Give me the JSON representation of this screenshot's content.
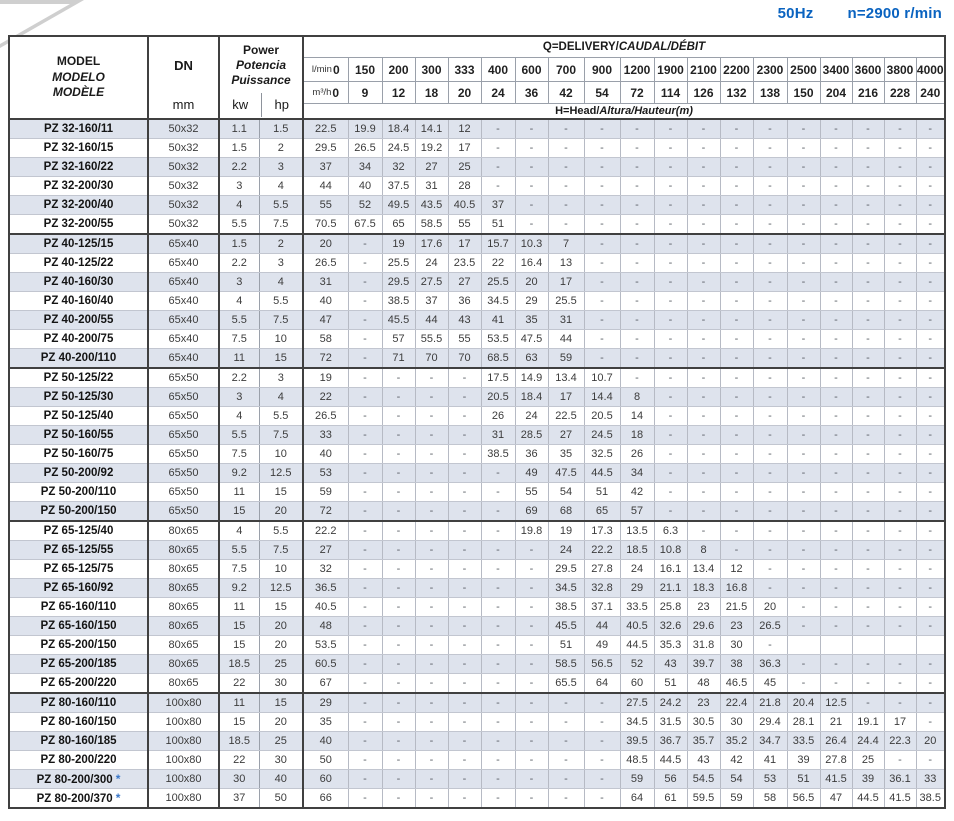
{
  "title": {
    "frequency": "50Hz",
    "speed": "n=2900 r/min"
  },
  "table": {
    "header": {
      "model_labels": [
        "MODEL",
        "MODELO",
        "MODÈLE"
      ],
      "dn_label": "DN",
      "dn_unit": "mm",
      "power_labels": [
        "Power",
        "Potencia",
        "Puissance"
      ],
      "power_unit_kw": "kw",
      "power_unit_hp": "hp",
      "q_title_main": "Q=DELIVERY/",
      "q_title_intl": "CAUDAL/DÉBIT",
      "h_title_main": "H=Head/",
      "h_title_intl": "Altura/Hauteur(m)",
      "flow_lmin_label": "l/min",
      "flow_m3h_label": "m³/h",
      "flow_lmin": [
        "0",
        "150",
        "200",
        "300",
        "333",
        "400",
        "600",
        "700",
        "900",
        "1200",
        "1900",
        "2100",
        "2200",
        "2300",
        "2500",
        "3400",
        "3600",
        "3800",
        "4000"
      ],
      "flow_m3h": [
        "0",
        "9",
        "12",
        "18",
        "20",
        "24",
        "36",
        "42",
        "54",
        "72",
        "114",
        "126",
        "132",
        "138",
        "150",
        "204",
        "216",
        "228",
        "240"
      ]
    },
    "rows": [
      {
        "model": "PZ 32-160/11",
        "star": "",
        "group_start": false,
        "dn": "50x32",
        "kw": "1.1",
        "hp": "1.5",
        "head_m": [
          "22.5",
          "19.9",
          "18.4",
          "14.1",
          "12",
          "-",
          "-",
          "-",
          "-",
          "-",
          "-",
          "-",
          "-",
          "-",
          "-",
          "-",
          "-",
          "-",
          "-"
        ]
      },
      {
        "model": "PZ 32-160/15",
        "star": "",
        "group_start": false,
        "dn": "50x32",
        "kw": "1.5",
        "hp": "2",
        "head_m": [
          "29.5",
          "26.5",
          "24.5",
          "19.2",
          "17",
          "-",
          "-",
          "-",
          "-",
          "-",
          "-",
          "-",
          "-",
          "-",
          "-",
          "-",
          "-",
          "-",
          "-"
        ]
      },
      {
        "model": "PZ 32-160/22",
        "star": "",
        "group_start": false,
        "dn": "50x32",
        "kw": "2.2",
        "hp": "3",
        "head_m": [
          "37",
          "34",
          "32",
          "27",
          "25",
          "-",
          "-",
          "-",
          "-",
          "-",
          "-",
          "-",
          "-",
          "-",
          "-",
          "-",
          "-",
          "-",
          "-"
        ]
      },
      {
        "model": "PZ 32-200/30",
        "star": "",
        "group_start": false,
        "dn": "50x32",
        "kw": "3",
        "hp": "4",
        "head_m": [
          "44",
          "40",
          "37.5",
          "31",
          "28",
          "-",
          "-",
          "-",
          "-",
          "-",
          "-",
          "-",
          "-",
          "-",
          "-",
          "-",
          "-",
          "-",
          "-"
        ]
      },
      {
        "model": "PZ 32-200/40",
        "star": "",
        "group_start": false,
        "dn": "50x32",
        "kw": "4",
        "hp": "5.5",
        "head_m": [
          "55",
          "52",
          "49.5",
          "43.5",
          "40.5",
          "37",
          "-",
          "-",
          "-",
          "-",
          "-",
          "-",
          "-",
          "-",
          "-",
          "-",
          "-",
          "-",
          "-"
        ]
      },
      {
        "model": "PZ 32-200/55",
        "star": "",
        "group_start": false,
        "dn": "50x32",
        "kw": "5.5",
        "hp": "7.5",
        "head_m": [
          "70.5",
          "67.5",
          "65",
          "58.5",
          "55",
          "51",
          "-",
          "-",
          "-",
          "-",
          "-",
          "-",
          "-",
          "-",
          "-",
          "-",
          "-",
          "-",
          "-"
        ]
      },
      {
        "model": "PZ 40-125/15",
        "star": "",
        "group_start": true,
        "dn": "65x40",
        "kw": "1.5",
        "hp": "2",
        "head_m": [
          "20",
          "-",
          "19",
          "17.6",
          "17",
          "15.7",
          "10.3",
          "7",
          "-",
          "-",
          "-",
          "-",
          "-",
          "-",
          "-",
          "-",
          "-",
          "-",
          "-"
        ]
      },
      {
        "model": "PZ 40-125/22",
        "star": "",
        "group_start": false,
        "dn": "65x40",
        "kw": "2.2",
        "hp": "3",
        "head_m": [
          "26.5",
          "-",
          "25.5",
          "24",
          "23.5",
          "22",
          "16.4",
          "13",
          "-",
          "-",
          "-",
          "-",
          "-",
          "-",
          "-",
          "-",
          "-",
          "-",
          "-"
        ]
      },
      {
        "model": "PZ 40-160/30",
        "star": "",
        "group_start": false,
        "dn": "65x40",
        "kw": "3",
        "hp": "4",
        "head_m": [
          "31",
          "-",
          "29.5",
          "27.5",
          "27",
          "25.5",
          "20",
          "17",
          "-",
          "-",
          "-",
          "-",
          "-",
          "-",
          "-",
          "-",
          "-",
          "-",
          "-"
        ]
      },
      {
        "model": "PZ 40-160/40",
        "star": "",
        "group_start": false,
        "dn": "65x40",
        "kw": "4",
        "hp": "5.5",
        "head_m": [
          "40",
          "-",
          "38.5",
          "37",
          "36",
          "34.5",
          "29",
          "25.5",
          "-",
          "-",
          "-",
          "-",
          "-",
          "-",
          "-",
          "-",
          "-",
          "-",
          "-"
        ]
      },
      {
        "model": "PZ 40-200/55",
        "star": "",
        "group_start": false,
        "dn": "65x40",
        "kw": "5.5",
        "hp": "7.5",
        "head_m": [
          "47",
          "-",
          "45.5",
          "44",
          "43",
          "41",
          "35",
          "31",
          "-",
          "-",
          "-",
          "-",
          "-",
          "-",
          "-",
          "-",
          "-",
          "-",
          "-"
        ]
      },
      {
        "model": "PZ 40-200/75",
        "star": "",
        "group_start": false,
        "dn": "65x40",
        "kw": "7.5",
        "hp": "10",
        "head_m": [
          "58",
          "-",
          "57",
          "55.5",
          "55",
          "53.5",
          "47.5",
          "44",
          "-",
          "-",
          "-",
          "-",
          "-",
          "-",
          "-",
          "-",
          "-",
          "-",
          "-"
        ]
      },
      {
        "model": "PZ 40-200/110",
        "star": "",
        "group_start": false,
        "dn": "65x40",
        "kw": "11",
        "hp": "15",
        "head_m": [
          "72",
          "-",
          "71",
          "70",
          "70",
          "68.5",
          "63",
          "59",
          "-",
          "-",
          "-",
          "-",
          "-",
          "-",
          "-",
          "-",
          "-",
          "-",
          "-"
        ]
      },
      {
        "model": "PZ 50-125/22",
        "star": "",
        "group_start": true,
        "dn": "65x50",
        "kw": "2.2",
        "hp": "3",
        "head_m": [
          "19",
          "-",
          "-",
          "-",
          "-",
          "17.5",
          "14.9",
          "13.4",
          "10.7",
          "-",
          "-",
          "-",
          "-",
          "-",
          "-",
          "-",
          "-",
          "-",
          "-"
        ]
      },
      {
        "model": "PZ 50-125/30",
        "star": "",
        "group_start": false,
        "dn": "65x50",
        "kw": "3",
        "hp": "4",
        "head_m": [
          "22",
          "-",
          "-",
          "-",
          "-",
          "20.5",
          "18.4",
          "17",
          "14.4",
          "8",
          "-",
          "-",
          "-",
          "-",
          "-",
          "-",
          "-",
          "-",
          "-"
        ]
      },
      {
        "model": "PZ 50-125/40",
        "star": "",
        "group_start": false,
        "dn": "65x50",
        "kw": "4",
        "hp": "5.5",
        "head_m": [
          "26.5",
          "-",
          "-",
          "-",
          "-",
          "26",
          "24",
          "22.5",
          "20.5",
          "14",
          "-",
          "-",
          "-",
          "-",
          "-",
          "-",
          "-",
          "-",
          "-"
        ]
      },
      {
        "model": "PZ 50-160/55",
        "star": "",
        "group_start": false,
        "dn": "65x50",
        "kw": "5.5",
        "hp": "7.5",
        "head_m": [
          "33",
          "-",
          "-",
          "-",
          "-",
          "31",
          "28.5",
          "27",
          "24.5",
          "18",
          "-",
          "-",
          "-",
          "-",
          "-",
          "-",
          "-",
          "-",
          "-"
        ]
      },
      {
        "model": "PZ 50-160/75",
        "star": "",
        "group_start": false,
        "dn": "65x50",
        "kw": "7.5",
        "hp": "10",
        "head_m": [
          "40",
          "-",
          "-",
          "-",
          "-",
          "38.5",
          "36",
          "35",
          "32.5",
          "26",
          "-",
          "-",
          "-",
          "-",
          "-",
          "-",
          "-",
          "-",
          "-"
        ]
      },
      {
        "model": "PZ 50-200/92",
        "star": "",
        "group_start": false,
        "dn": "65x50",
        "kw": "9.2",
        "hp": "12.5",
        "head_m": [
          "53",
          "-",
          "-",
          "-",
          "-",
          "-",
          "49",
          "47.5",
          "44.5",
          "34",
          "-",
          "-",
          "-",
          "-",
          "-",
          "-",
          "-",
          "-",
          "-"
        ]
      },
      {
        "model": "PZ 50-200/110",
        "star": "",
        "group_start": false,
        "dn": "65x50",
        "kw": "11",
        "hp": "15",
        "head_m": [
          "59",
          "-",
          "-",
          "-",
          "-",
          "-",
          "55",
          "54",
          "51",
          "42",
          "-",
          "-",
          "-",
          "-",
          "-",
          "-",
          "-",
          "-",
          "-"
        ]
      },
      {
        "model": "PZ 50-200/150",
        "star": "",
        "group_start": false,
        "dn": "65x50",
        "kw": "15",
        "hp": "20",
        "head_m": [
          "72",
          "-",
          "-",
          "-",
          "-",
          "-",
          "69",
          "68",
          "65",
          "57",
          "-",
          "-",
          "-",
          "-",
          "-",
          "-",
          "-",
          "-",
          "-"
        ]
      },
      {
        "model": "PZ 65-125/40",
        "star": "",
        "group_start": true,
        "dn": "80x65",
        "kw": "4",
        "hp": "5.5",
        "head_m": [
          "22.2",
          "-",
          "-",
          "-",
          "-",
          "-",
          "19.8",
          "19",
          "17.3",
          "13.5",
          "6.3",
          "-",
          "-",
          "-",
          "-",
          "-",
          "-",
          "-",
          "-"
        ]
      },
      {
        "model": "PZ 65-125/55",
        "star": "",
        "group_start": false,
        "dn": "80x65",
        "kw": "5.5",
        "hp": "7.5",
        "head_m": [
          "27",
          "-",
          "-",
          "-",
          "-",
          "-",
          "-",
          "24",
          "22.2",
          "18.5",
          "10.8",
          "8",
          "-",
          "-",
          "-",
          "-",
          "-",
          "-",
          "-"
        ]
      },
      {
        "model": "PZ 65-125/75",
        "star": "",
        "group_start": false,
        "dn": "80x65",
        "kw": "7.5",
        "hp": "10",
        "head_m": [
          "32",
          "-",
          "-",
          "-",
          "-",
          "-",
          "-",
          "29.5",
          "27.8",
          "24",
          "16.1",
          "13.4",
          "12",
          "-",
          "-",
          "-",
          "-",
          "-",
          "-"
        ]
      },
      {
        "model": "PZ 65-160/92",
        "star": "",
        "group_start": false,
        "dn": "80x65",
        "kw": "9.2",
        "hp": "12.5",
        "head_m": [
          "36.5",
          "-",
          "-",
          "-",
          "-",
          "-",
          "-",
          "34.5",
          "32.8",
          "29",
          "21.1",
          "18.3",
          "16.8",
          "-",
          "-",
          "-",
          "-",
          "-",
          "-"
        ]
      },
      {
        "model": "PZ 65-160/110",
        "star": "",
        "group_start": false,
        "dn": "80x65",
        "kw": "11",
        "hp": "15",
        "head_m": [
          "40.5",
          "-",
          "-",
          "-",
          "-",
          "-",
          "-",
          "38.5",
          "37.1",
          "33.5",
          "25.8",
          "23",
          "21.5",
          "20",
          "-",
          "-",
          "-",
          "-",
          "-"
        ]
      },
      {
        "model": "PZ 65-160/150",
        "star": "",
        "group_start": false,
        "dn": "80x65",
        "kw": "15",
        "hp": "20",
        "head_m": [
          "48",
          "-",
          "-",
          "-",
          "-",
          "-",
          "-",
          "45.5",
          "44",
          "40.5",
          "32.6",
          "29.6",
          "23",
          "26.5",
          "-",
          "-",
          "-",
          "-",
          "-"
        ]
      },
      {
        "model": "PZ 65-200/150",
        "star": "",
        "group_start": false,
        "dn": "80x65",
        "kw": "15",
        "hp": "20",
        "head_m": [
          "53.5",
          "-",
          "-",
          "-",
          "-",
          "-",
          "-",
          "51",
          "49",
          "44.5",
          "35.3",
          "31.8",
          "30",
          "-",
          "",
          "",
          "",
          "",
          ""
        ]
      },
      {
        "model": "PZ 65-200/185",
        "star": "",
        "group_start": false,
        "dn": "80x65",
        "kw": "18.5",
        "hp": "25",
        "head_m": [
          "60.5",
          "-",
          "-",
          "-",
          "-",
          "-",
          "-",
          "58.5",
          "56.5",
          "52",
          "43",
          "39.7",
          "38",
          "36.3",
          "-",
          "-",
          "-",
          "-",
          "-"
        ]
      },
      {
        "model": "PZ 65-200/220",
        "star": "",
        "group_start": false,
        "dn": "80x65",
        "kw": "22",
        "hp": "30",
        "head_m": [
          "67",
          "-",
          "-",
          "-",
          "-",
          "-",
          "-",
          "65.5",
          "64",
          "60",
          "51",
          "48",
          "46.5",
          "45",
          "-",
          "-",
          "-",
          "-",
          "-"
        ]
      },
      {
        "model": "PZ 80-160/110",
        "star": "",
        "group_start": true,
        "dn": "100x80",
        "kw": "11",
        "hp": "15",
        "head_m": [
          "29",
          "-",
          "-",
          "-",
          "-",
          "-",
          "-",
          "-",
          "-",
          "27.5",
          "24.2",
          "23",
          "22.4",
          "21.8",
          "20.4",
          "12.5",
          "-",
          "-",
          "-"
        ]
      },
      {
        "model": "PZ 80-160/150",
        "star": "",
        "group_start": false,
        "dn": "100x80",
        "kw": "15",
        "hp": "20",
        "head_m": [
          "35",
          "-",
          "-",
          "-",
          "-",
          "-",
          "-",
          "-",
          "-",
          "34.5",
          "31.5",
          "30.5",
          "30",
          "29.4",
          "28.1",
          "21",
          "19.1",
          "17",
          "-"
        ]
      },
      {
        "model": "PZ 80-160/185",
        "star": "",
        "group_start": false,
        "dn": "100x80",
        "kw": "18.5",
        "hp": "25",
        "head_m": [
          "40",
          "-",
          "-",
          "-",
          "-",
          "-",
          "-",
          "-",
          "-",
          "39.5",
          "36.7",
          "35.7",
          "35.2",
          "34.7",
          "33.5",
          "26.4",
          "24.4",
          "22.3",
          "20"
        ]
      },
      {
        "model": "PZ 80-200/220",
        "star": "",
        "group_start": false,
        "dn": "100x80",
        "kw": "22",
        "hp": "30",
        "head_m": [
          "50",
          "-",
          "-",
          "-",
          "-",
          "-",
          "-",
          "-",
          "-",
          "48.5",
          "44.5",
          "43",
          "42",
          "41",
          "39",
          "27.8",
          "25",
          "-",
          "-"
        ]
      },
      {
        "model": "PZ 80-200/300",
        "star": "*",
        "group_start": false,
        "dn": "100x80",
        "kw": "30",
        "hp": "40",
        "head_m": [
          "60",
          "-",
          "-",
          "-",
          "-",
          "-",
          "-",
          "-",
          "-",
          "59",
          "56",
          "54.5",
          "54",
          "53",
          "51",
          "41.5",
          "39",
          "36.1",
          "33"
        ]
      },
      {
        "model": "PZ 80-200/370",
        "star": "*",
        "group_start": false,
        "dn": "100x80",
        "kw": "37",
        "hp": "50",
        "head_m": [
          "66",
          "-",
          "-",
          "-",
          "-",
          "-",
          "-",
          "-",
          "-",
          "64",
          "61",
          "59.5",
          "59",
          "58",
          "56.5",
          "47",
          "44.5",
          "41.5",
          "38.5"
        ]
      }
    ]
  }
}
